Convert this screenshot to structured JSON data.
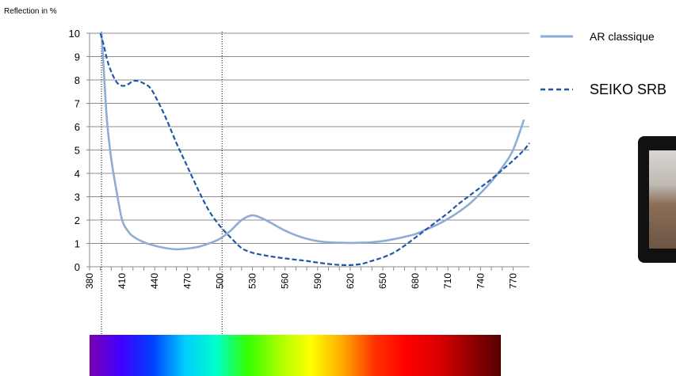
{
  "chart_data": {
    "type": "line",
    "ylabel": "Reflection in %",
    "xlabel": "",
    "xlim": [
      380,
      785
    ],
    "ylim": [
      0,
      10
    ],
    "x_ticks": [
      380,
      410,
      440,
      470,
      500,
      530,
      560,
      590,
      620,
      650,
      680,
      710,
      740,
      770
    ],
    "y_ticks": [
      0,
      1,
      2,
      3,
      4,
      5,
      6,
      7,
      8,
      9,
      10
    ],
    "grid": "horizontal",
    "legend_position": "right",
    "series": [
      {
        "name": "AR classique",
        "style": "solid",
        "color": "#8eacd6",
        "x": [
          391,
          393,
          396,
          400,
          405,
          410,
          415,
          420,
          430,
          440,
          450,
          460,
          470,
          480,
          490,
          500,
          510,
          520,
          530,
          540,
          550,
          560,
          570,
          580,
          590,
          600,
          610,
          620,
          630,
          640,
          650,
          660,
          670,
          680,
          690,
          700,
          710,
          720,
          730,
          740,
          750,
          760,
          770,
          780
        ],
        "y": [
          10,
          8.5,
          6.3,
          4.6,
          3.2,
          2.0,
          1.55,
          1.3,
          1.05,
          0.9,
          0.8,
          0.75,
          0.78,
          0.85,
          1.0,
          1.2,
          1.55,
          2.0,
          2.2,
          2.05,
          1.8,
          1.55,
          1.35,
          1.2,
          1.1,
          1.05,
          1.03,
          1.02,
          1.03,
          1.05,
          1.1,
          1.18,
          1.28,
          1.4,
          1.6,
          1.8,
          2.05,
          2.35,
          2.7,
          3.15,
          3.65,
          4.25,
          5.0,
          6.3
        ]
      },
      {
        "name": "SEIKO SRB",
        "style": "dashed",
        "color": "#1f57a6",
        "x": [
          390,
          393,
          396,
          400,
          405,
          410,
          415,
          420,
          425,
          430,
          435,
          440,
          450,
          460,
          470,
          480,
          490,
          500,
          510,
          520,
          530,
          540,
          550,
          560,
          570,
          580,
          590,
          600,
          610,
          620,
          630,
          640,
          650,
          660,
          670,
          680,
          690,
          700,
          710,
          720,
          730,
          740,
          750,
          760,
          770,
          780,
          785
        ],
        "y": [
          10,
          9.5,
          8.9,
          8.35,
          7.9,
          7.75,
          7.8,
          7.95,
          7.95,
          7.85,
          7.7,
          7.35,
          6.4,
          5.3,
          4.3,
          3.3,
          2.4,
          1.75,
          1.25,
          0.8,
          0.6,
          0.5,
          0.42,
          0.36,
          0.3,
          0.25,
          0.18,
          0.12,
          0.08,
          0.07,
          0.12,
          0.25,
          0.4,
          0.6,
          0.9,
          1.25,
          1.6,
          1.95,
          2.3,
          2.7,
          3.05,
          3.4,
          3.75,
          4.15,
          4.55,
          5.0,
          5.3
        ]
      }
    ],
    "markers": [
      {
        "x": 391
      },
      {
        "x": 502
      }
    ],
    "spectrum": {
      "colors": [
        "#7a00b0",
        "#3f00ff",
        "#0040ff",
        "#00ccff",
        "#00ffcc",
        "#33ff00",
        "#aaff00",
        "#ffff00",
        "#ffaa00",
        "#ff3300",
        "#ff0000",
        "#dd0000",
        "#990000",
        "#550000"
      ]
    }
  }
}
